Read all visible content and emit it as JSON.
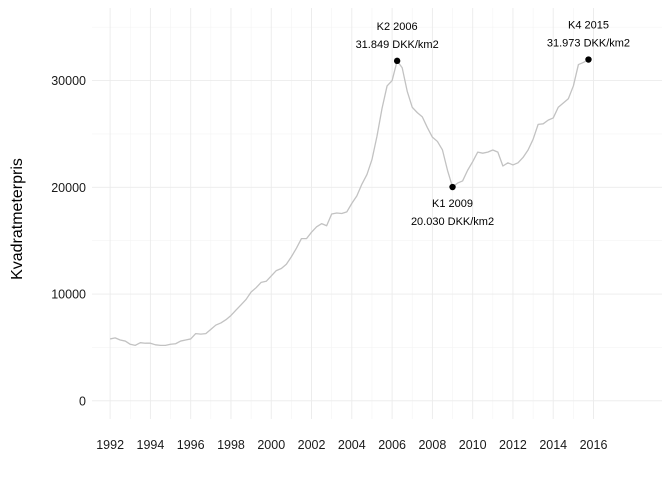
{
  "chart_data": {
    "type": "line",
    "title": "",
    "xlabel": "",
    "ylabel": "Kvadratmeterpris",
    "grid": true,
    "xlim": [
      1991.1,
      2019.4
    ],
    "ylim": [
      -1700,
      36800
    ],
    "x_ticks": [
      1992,
      1994,
      1996,
      1998,
      2000,
      2002,
      2004,
      2006,
      2008,
      2010,
      2012,
      2014,
      2016
    ],
    "x_tick_labels": [
      "1992",
      "1994",
      "1996",
      "1998",
      "2000",
      "2002",
      "2004",
      "2006",
      "2008",
      "2010",
      "2012",
      "2014",
      "2016"
    ],
    "y_ticks": [
      0,
      10000,
      20000,
      30000
    ],
    "y_tick_labels": [
      "0",
      "10000",
      "20000",
      "30000"
    ],
    "series": [
      {
        "color": "#c2c2c2",
        "x": [
          1992.0,
          1992.25,
          1992.5,
          1992.75,
          1993.0,
          1993.25,
          1993.5,
          1993.75,
          1994.0,
          1994.25,
          1994.5,
          1994.75,
          1995.0,
          1995.25,
          1995.5,
          1995.75,
          1996.0,
          1996.25,
          1996.5,
          1996.75,
          1997.0,
          1997.25,
          1997.5,
          1997.75,
          1998.0,
          1998.25,
          1998.5,
          1998.75,
          1999.0,
          1999.25,
          1999.5,
          1999.75,
          2000.0,
          2000.25,
          2000.5,
          2000.75,
          2001.0,
          2001.25,
          2001.5,
          2001.75,
          2002.0,
          2002.25,
          2002.5,
          2002.75,
          2003.0,
          2003.25,
          2003.5,
          2003.75,
          2004.0,
          2004.25,
          2004.5,
          2004.75,
          2005.0,
          2005.25,
          2005.5,
          2005.75,
          2006.0,
          2006.25,
          2006.5,
          2006.75,
          2007.0,
          2007.25,
          2007.5,
          2007.75,
          2008.0,
          2008.25,
          2008.5,
          2008.75,
          2009.0,
          2009.25,
          2009.5,
          2009.75,
          2010.0,
          2010.25,
          2010.5,
          2010.75,
          2011.0,
          2011.25,
          2011.5,
          2011.75,
          2012.0,
          2012.25,
          2012.5,
          2012.75,
          2013.0,
          2013.25,
          2013.5,
          2013.75,
          2014.0,
          2014.25,
          2014.5,
          2014.75,
          2015.0,
          2015.25,
          2015.5,
          2015.75
        ],
        "values": [
          5800,
          5900,
          5700,
          5600,
          5300,
          5200,
          5450,
          5400,
          5400,
          5250,
          5200,
          5200,
          5300,
          5350,
          5600,
          5700,
          5800,
          6300,
          6250,
          6300,
          6700,
          7100,
          7300,
          7600,
          8000,
          8500,
          9000,
          9500,
          10200,
          10600,
          11100,
          11200,
          11700,
          12200,
          12400,
          12800,
          13500,
          14300,
          15200,
          15200,
          15800,
          16300,
          16600,
          16400,
          17500,
          17600,
          17550,
          17700,
          18500,
          19200,
          20300,
          21200,
          22600,
          24800,
          27400,
          29500,
          30000,
          31849,
          31200,
          29000,
          27500,
          27000,
          26600,
          25600,
          24700,
          24300,
          23500,
          21600,
          20030,
          20400,
          20600,
          21600,
          22400,
          23300,
          23200,
          23300,
          23500,
          23300,
          22000,
          22300,
          22100,
          22300,
          22800,
          23500,
          24500,
          25900,
          25950,
          26300,
          26500,
          27500,
          27900,
          28300,
          29500,
          31500,
          31700,
          31973
        ]
      }
    ],
    "annotations": [
      {
        "x": 2006.25,
        "y": 31849,
        "line1": "K2 2006",
        "line2": "31.849 DKK/km2",
        "position": "above"
      },
      {
        "x": 2009.0,
        "y": 20030,
        "line1": "K1 2009",
        "line2": "20.030 DKK/km2",
        "position": "below"
      },
      {
        "x": 2015.75,
        "y": 31973,
        "line1": "K4 2015",
        "line2": "31.973 DKK/km2",
        "position": "above"
      }
    ]
  }
}
